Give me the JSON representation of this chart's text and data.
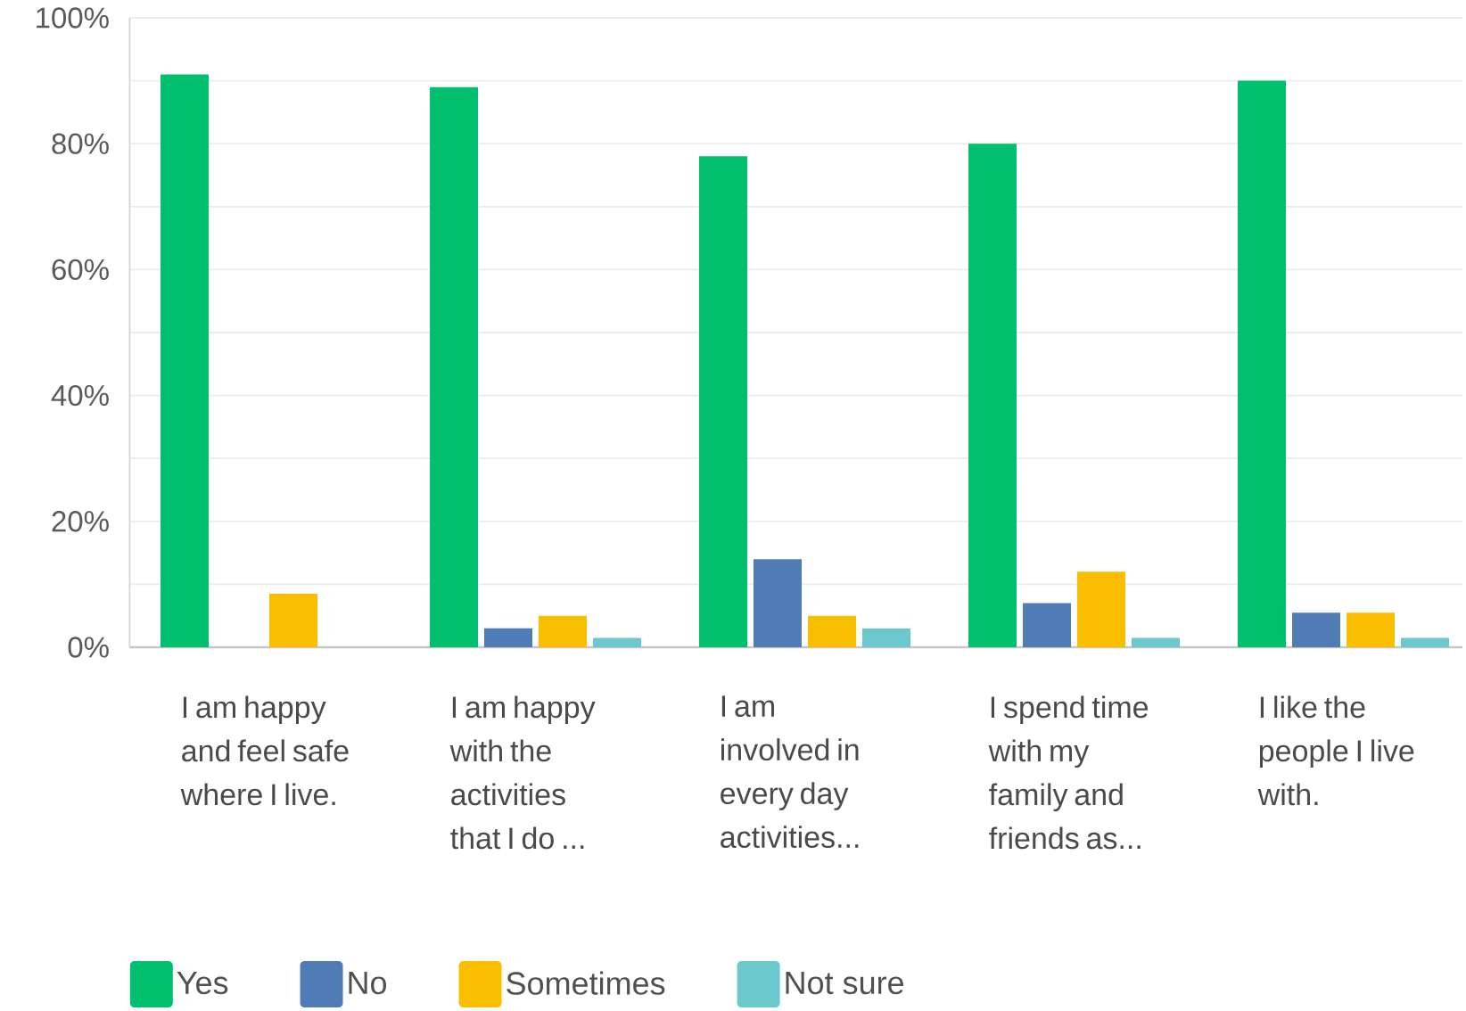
{
  "chart_data": {
    "type": "bar",
    "categories": [
      "I am happy and feel safe where I live.",
      "I am happy with the activities that I do ...",
      "I am involved in every day activities...",
      "I spend time with my family and friends as...",
      "I like the people I live with."
    ],
    "series": [
      {
        "name": "Yes",
        "color": "#00bf6f",
        "values": [
          91,
          89,
          78,
          80,
          90
        ]
      },
      {
        "name": "No",
        "color": "#507cb6",
        "values": [
          0,
          3,
          14,
          7,
          5.5
        ]
      },
      {
        "name": "Sometimes",
        "color": "#f9be00",
        "values": [
          8.5,
          5,
          5,
          12,
          5.5
        ]
      },
      {
        "name": "Not sure",
        "color": "#6bc8cd",
        "values": [
          0,
          1.5,
          3,
          1.5,
          1.5
        ]
      }
    ],
    "ylim": [
      0,
      100
    ],
    "yticks": [
      {
        "value": 0,
        "label": "0%"
      },
      {
        "value": 10,
        "label": null
      },
      {
        "value": 20,
        "label": "20%"
      },
      {
        "value": 30,
        "label": null
      },
      {
        "value": 40,
        "label": "40%"
      },
      {
        "value": 50,
        "label": null
      },
      {
        "value": 60,
        "label": "60%"
      },
      {
        "value": 70,
        "label": null
      },
      {
        "value": 80,
        "label": "80%"
      },
      {
        "value": 90,
        "label": null
      },
      {
        "value": 100,
        "label": "100%"
      }
    ],
    "grid": "y",
    "legend": "bottom"
  }
}
